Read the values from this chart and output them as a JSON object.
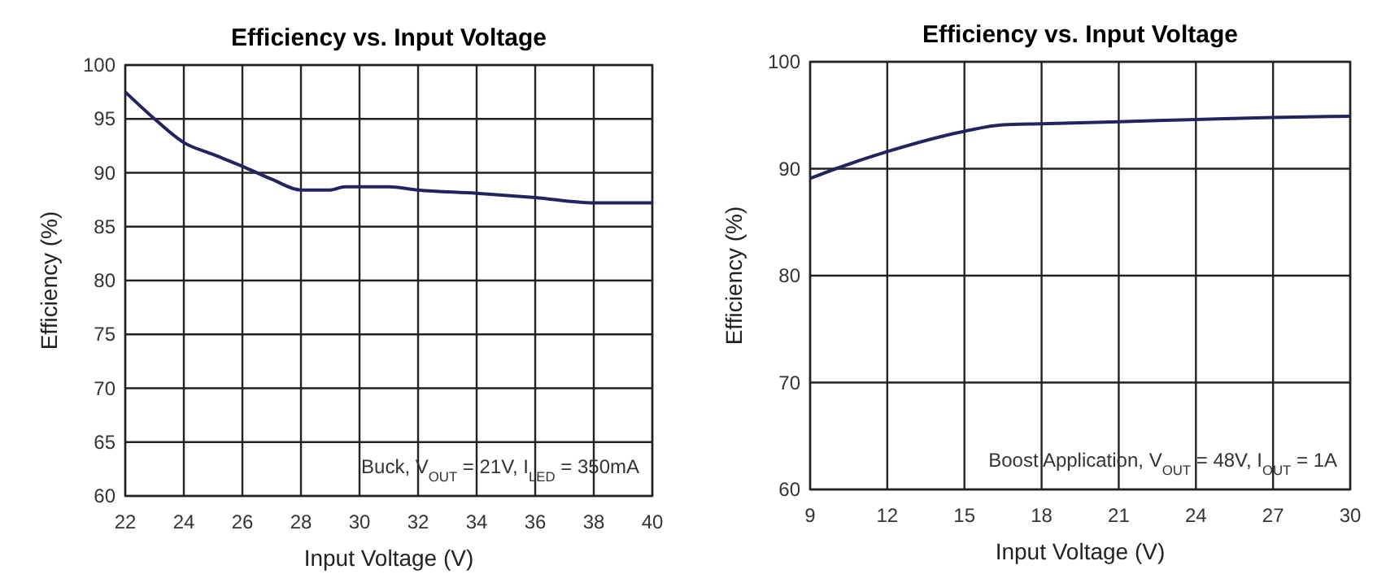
{
  "chart_data": [
    {
      "type": "line",
      "title": "Efficiency vs. Input Voltage",
      "xlabel": "Input Voltage (V)",
      "ylabel": "Efficiency (%)",
      "xlim": [
        22,
        40
      ],
      "xticks": [
        22,
        24,
        26,
        28,
        30,
        32,
        34,
        36,
        38,
        40
      ],
      "ylim": [
        60,
        100
      ],
      "yticks": [
        60,
        65,
        70,
        75,
        80,
        85,
        90,
        95,
        100
      ],
      "grid": true,
      "annotations": [
        "Buck, V$_{OUT}$ = 21V, I$_{LED}$ = 350mA"
      ],
      "series": [
        {
          "color": "#23235f",
          "x": [
            22,
            23,
            24,
            25,
            26,
            27,
            28,
            29,
            29.5,
            31,
            32,
            34,
            36,
            38,
            40
          ],
          "values": [
            97.5,
            95,
            92.8,
            91.7,
            90.6,
            89.4,
            88.4,
            88.4,
            88.7,
            88.7,
            88.4,
            88.1,
            87.7,
            87.2,
            87.2
          ]
        }
      ]
    },
    {
      "type": "line",
      "title": "Efficiency vs. Input Voltage",
      "xlabel": "Input Voltage (V)",
      "ylabel": "Efficiency (%)",
      "xlim": [
        9,
        30
      ],
      "xticks": [
        9,
        12,
        15,
        18,
        21,
        24,
        27,
        30
      ],
      "ylim": [
        60,
        100
      ],
      "yticks": [
        60,
        70,
        80,
        90,
        100
      ],
      "grid": true,
      "annotations": [
        "Boost Application, V$_{OUT}$ = 48V, I$_{OUT}$ = 1A"
      ],
      "series": [
        {
          "color": "#23235f",
          "x": [
            9,
            10,
            12,
            15,
            16.5,
            18,
            21,
            24,
            27,
            30
          ],
          "values": [
            89.1,
            90,
            91.6,
            93.5,
            94.1,
            94.2,
            94.4,
            94.6,
            94.8,
            94.9
          ]
        }
      ]
    }
  ]
}
